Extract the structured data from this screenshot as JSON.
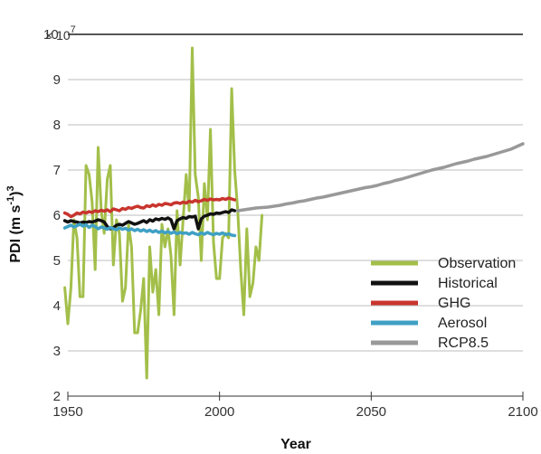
{
  "chart_data": {
    "type": "line",
    "xlabel": "Year",
    "ylabel_main": "PDI (m s",
    "ylabel_sup1": "-1",
    "ylabel_close": ")",
    "ylabel_sup2": "3",
    "y_multiplier": {
      "base": "× 10",
      "exp": "7"
    },
    "xlim": [
      1950,
      2100
    ],
    "ylim": [
      2,
      10
    ],
    "xticks": [
      1950,
      2000,
      2050,
      2100
    ],
    "yticks": [
      2,
      3,
      4,
      5,
      6,
      7,
      8,
      9,
      10
    ],
    "grid": "horizontal",
    "legend_position": "right",
    "series": [
      {
        "name": "Observation",
        "color": "#a3bf4a",
        "x": [
          1949,
          1950,
          1951,
          1952,
          1953,
          1954,
          1955,
          1956,
          1957,
          1958,
          1959,
          1960,
          1961,
          1962,
          1963,
          1964,
          1965,
          1966,
          1967,
          1968,
          1969,
          1970,
          1971,
          1972,
          1973,
          1974,
          1975,
          1976,
          1977,
          1978,
          1979,
          1980,
          1981,
          1982,
          1983,
          1984,
          1985,
          1986,
          1987,
          1988,
          1989,
          1990,
          1991,
          1992,
          1993,
          1994,
          1995,
          1996,
          1997,
          1998,
          1999,
          2000,
          2001,
          2002,
          2003,
          2004,
          2005,
          2006,
          2007,
          2008,
          2009,
          2010,
          2011,
          2012,
          2013,
          2014
        ],
        "y": [
          4.4,
          3.6,
          4.4,
          5.9,
          5.5,
          4.2,
          4.2,
          7.1,
          6.9,
          6.3,
          4.8,
          7.5,
          6.1,
          5.6,
          6.8,
          7.1,
          4.9,
          5.9,
          5.6,
          4.1,
          4.4,
          5.8,
          5.3,
          3.4,
          3.4,
          3.9,
          4.6,
          2.4,
          5.3,
          4.3,
          4.8,
          3.8,
          5.8,
          5.3,
          5.7,
          5.1,
          3.8,
          6.1,
          4.9,
          5.9,
          6.9,
          6.1,
          9.7,
          6.9,
          6.4,
          5.0,
          6.7,
          5.9,
          7.9,
          5.4,
          4.6,
          4.6,
          5.5,
          5.6,
          5.5,
          8.8,
          7.0,
          6.1,
          4.8,
          3.8,
          5.7,
          4.2,
          4.5,
          5.3,
          5.0,
          6.0
        ]
      },
      {
        "name": "Historical",
        "color": "#111111",
        "x": [
          1949,
          1950,
          1951,
          1952,
          1953,
          1954,
          1955,
          1956,
          1957,
          1958,
          1959,
          1960,
          1961,
          1962,
          1963,
          1964,
          1965,
          1966,
          1967,
          1968,
          1969,
          1970,
          1971,
          1972,
          1973,
          1974,
          1975,
          1976,
          1977,
          1978,
          1979,
          1980,
          1981,
          1982,
          1983,
          1984,
          1985,
          1986,
          1987,
          1988,
          1989,
          1990,
          1991,
          1992,
          1993,
          1994,
          1995,
          1996,
          1997,
          1998,
          1999,
          2000,
          2001,
          2002,
          2003,
          2004,
          2005
        ],
        "y": [
          5.88,
          5.85,
          5.88,
          5.86,
          5.85,
          5.83,
          5.85,
          5.84,
          5.86,
          5.85,
          5.87,
          5.9,
          5.88,
          5.85,
          5.75,
          5.7,
          5.72,
          5.78,
          5.8,
          5.78,
          5.82,
          5.86,
          5.83,
          5.8,
          5.82,
          5.85,
          5.88,
          5.84,
          5.9,
          5.87,
          5.92,
          5.9,
          5.93,
          5.91,
          5.94,
          5.9,
          5.7,
          5.88,
          5.92,
          5.95,
          5.93,
          5.97,
          5.96,
          5.98,
          5.7,
          5.92,
          5.98,
          6.0,
          6.03,
          6.02,
          6.05,
          6.04,
          6.06,
          6.08,
          6.06,
          6.12,
          6.1
        ]
      },
      {
        "name": "GHG",
        "color": "#c8352d",
        "x": [
          1949,
          1950,
          1951,
          1952,
          1953,
          1954,
          1955,
          1956,
          1957,
          1958,
          1959,
          1960,
          1961,
          1962,
          1963,
          1964,
          1965,
          1966,
          1967,
          1968,
          1969,
          1970,
          1971,
          1972,
          1973,
          1974,
          1975,
          1976,
          1977,
          1978,
          1979,
          1980,
          1981,
          1982,
          1983,
          1984,
          1985,
          1986,
          1987,
          1988,
          1989,
          1990,
          1991,
          1992,
          1993,
          1994,
          1995,
          1996,
          1997,
          1998,
          1999,
          2000,
          2001,
          2002,
          2003,
          2004,
          2005
        ],
        "y": [
          6.05,
          6.02,
          5.97,
          6.0,
          6.05,
          6.03,
          6.07,
          6.05,
          6.08,
          6.06,
          6.1,
          6.08,
          6.11,
          6.09,
          6.12,
          6.08,
          6.14,
          6.12,
          6.1,
          6.15,
          6.13,
          6.17,
          6.15,
          6.18,
          6.2,
          6.17,
          6.16,
          6.21,
          6.19,
          6.23,
          6.2,
          6.24,
          6.22,
          6.26,
          6.25,
          6.23,
          6.27,
          6.28,
          6.26,
          6.29,
          6.27,
          6.31,
          6.29,
          6.33,
          6.3,
          6.32,
          6.35,
          6.33,
          6.36,
          6.34,
          6.35,
          6.34,
          6.37,
          6.35,
          6.38,
          6.36,
          6.34
        ]
      },
      {
        "name": "Aerosol",
        "color": "#3fa0c4",
        "x": [
          1949,
          1950,
          1951,
          1952,
          1953,
          1954,
          1955,
          1956,
          1957,
          1958,
          1959,
          1960,
          1961,
          1962,
          1963,
          1964,
          1965,
          1966,
          1967,
          1968,
          1969,
          1970,
          1971,
          1972,
          1973,
          1974,
          1975,
          1976,
          1977,
          1978,
          1979,
          1980,
          1981,
          1982,
          1983,
          1984,
          1985,
          1986,
          1987,
          1988,
          1989,
          1990,
          1991,
          1992,
          1993,
          1994,
          1995,
          1996,
          1997,
          1998,
          1999,
          2000,
          2001,
          2002,
          2003,
          2004,
          2005
        ],
        "y": [
          5.72,
          5.75,
          5.78,
          5.74,
          5.77,
          5.8,
          5.76,
          5.79,
          5.73,
          5.78,
          5.75,
          5.7,
          5.74,
          5.72,
          5.69,
          5.73,
          5.7,
          5.68,
          5.72,
          5.69,
          5.71,
          5.67,
          5.7,
          5.66,
          5.69,
          5.65,
          5.68,
          5.64,
          5.67,
          5.63,
          5.66,
          5.62,
          5.65,
          5.61,
          5.64,
          5.6,
          5.63,
          5.59,
          5.62,
          5.6,
          5.61,
          5.58,
          5.62,
          5.59,
          5.57,
          5.61,
          5.58,
          5.62,
          5.59,
          5.57,
          5.6,
          5.58,
          5.61,
          5.57,
          5.59,
          5.56,
          5.55
        ]
      },
      {
        "name": "RCP8.5",
        "color": "#999999",
        "x": [
          2006,
          2008,
          2010,
          2012,
          2014,
          2016,
          2018,
          2020,
          2022,
          2024,
          2026,
          2028,
          2030,
          2032,
          2034,
          2036,
          2038,
          2040,
          2042,
          2044,
          2046,
          2048,
          2050,
          2052,
          2054,
          2056,
          2058,
          2060,
          2062,
          2064,
          2066,
          2068,
          2070,
          2072,
          2074,
          2076,
          2078,
          2080,
          2082,
          2084,
          2086,
          2088,
          2090,
          2092,
          2094,
          2096,
          2098,
          2100
        ],
        "y": [
          6.1,
          6.12,
          6.14,
          6.16,
          6.17,
          6.18,
          6.2,
          6.22,
          6.25,
          6.27,
          6.3,
          6.32,
          6.35,
          6.38,
          6.4,
          6.43,
          6.46,
          6.49,
          6.52,
          6.55,
          6.58,
          6.61,
          6.63,
          6.66,
          6.7,
          6.73,
          6.77,
          6.8,
          6.84,
          6.88,
          6.92,
          6.96,
          7.0,
          7.03,
          7.06,
          7.1,
          7.14,
          7.17,
          7.2,
          7.24,
          7.27,
          7.3,
          7.34,
          7.38,
          7.42,
          7.46,
          7.52,
          7.58
        ]
      }
    ]
  }
}
